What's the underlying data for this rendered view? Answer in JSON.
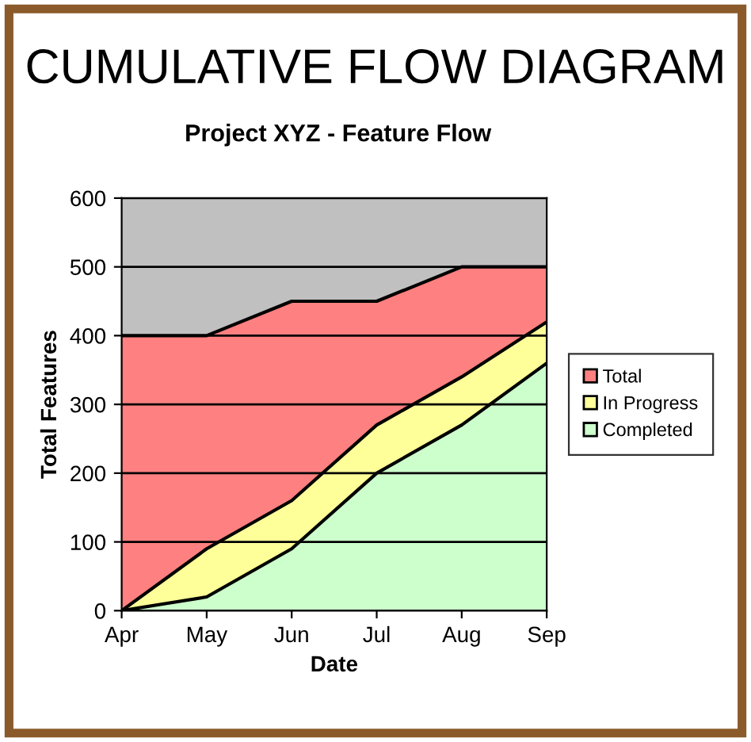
{
  "chart_data": {
    "type": "area",
    "title": "CUMULATIVE FLOW DIAGRAM",
    "subtitle": "Project XYZ - Feature Flow",
    "xlabel": "Date",
    "ylabel": "Total Features",
    "categories": [
      "Apr",
      "May",
      "Jun",
      "Jul",
      "Aug",
      "Sep"
    ],
    "series": [
      {
        "name": "Total",
        "color": "#ff8080",
        "values": [
          400,
          400,
          450,
          450,
          500,
          500
        ]
      },
      {
        "name": "In Progress",
        "color": "#ffff99",
        "values": [
          0,
          90,
          160,
          270,
          340,
          420
        ]
      },
      {
        "name": "Completed",
        "color": "#ccffcc",
        "values": [
          0,
          20,
          90,
          200,
          270,
          360
        ]
      }
    ],
    "ylim": [
      0,
      600
    ],
    "yticks": [
      0,
      100,
      200,
      300,
      400,
      500,
      600
    ],
    "grid": "y",
    "legend": "right"
  }
}
